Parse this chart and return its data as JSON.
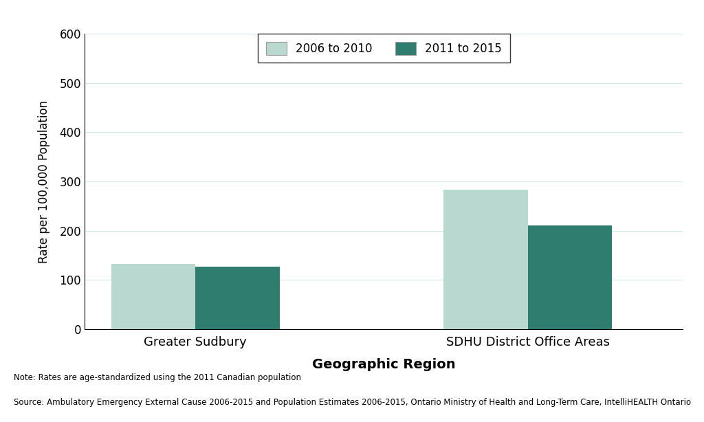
{
  "categories": [
    "Greater Sudbury",
    "SDHU District Office Areas"
  ],
  "series": [
    {
      "label": "2006 to 2010",
      "values": [
        132,
        283
      ],
      "color": "#b8d8d0"
    },
    {
      "label": "2011 to 2015",
      "values": [
        127,
        211
      ],
      "color": "#2e7d6e"
    }
  ],
  "ylabel": "Rate per 100,000 Population",
  "xlabel": "Geographic Region",
  "ylim": [
    0,
    600
  ],
  "yticks": [
    0,
    100,
    200,
    300,
    400,
    500,
    600
  ],
  "note": "Note: Rates are age-standardized using the 2011 Canadian population",
  "source": "Source: Ambulatory Emergency External Cause 2006-2015 and Population Estimates 2006-2015, Ontario Ministry of Health and Long-Term Care, IntelliHEALTH Ontario",
  "background_color": "#ffffff",
  "grid_color": "#d0e8e8",
  "bar_width": 0.38,
  "x_positions": [
    0.5,
    2.0
  ]
}
